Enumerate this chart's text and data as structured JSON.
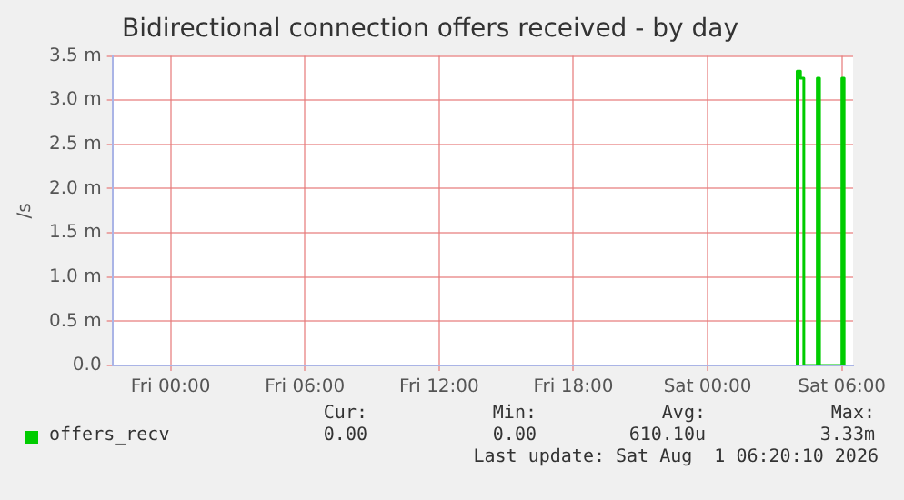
{
  "chart_data": {
    "type": "line",
    "title": "Bidirectional connection offers received - by day",
    "ylabel": "/s",
    "x": [
      "2026-08-01T04:00",
      "2026-08-01T04:00",
      "2026-08-01T04:09",
      "2026-08-01T04:09",
      "2026-08-01T04:18",
      "2026-08-01T04:18",
      "2026-08-01T04:54",
      "2026-08-01T04:54",
      "2026-08-01T05:00",
      "2026-08-01T05:00",
      "2026-08-01T06:00",
      "2026-08-01T06:00",
      "2026-08-01T06:06",
      "2026-08-01T06:06"
    ],
    "series": [
      {
        "name": "offers_recv",
        "color": "#00cc00",
        "values": [
          0,
          3.33,
          3.33,
          3.25,
          3.25,
          0,
          0,
          3.25,
          3.25,
          0,
          0,
          3.25,
          3.25,
          0
        ]
      }
    ],
    "xlim": [
      "2026-07-30T21:24",
      "2026-08-01T06:30"
    ],
    "xticks": [
      {
        "value": "2026-07-31T00:00",
        "label": "Fri 00:00"
      },
      {
        "value": "2026-07-31T06:00",
        "label": "Fri 06:00"
      },
      {
        "value": "2026-07-31T12:00",
        "label": "Fri 12:00"
      },
      {
        "value": "2026-07-31T18:00",
        "label": "Fri 18:00"
      },
      {
        "value": "2026-08-01T00:00",
        "label": "Sat 00:00"
      },
      {
        "value": "2026-08-01T06:00",
        "label": "Sat 06:00"
      }
    ],
    "ylim": [
      0,
      3.5
    ],
    "yticks": [
      {
        "value": 0,
        "label": "0.0"
      },
      {
        "value": 0.5,
        "label": "0.5 m"
      },
      {
        "value": 1,
        "label": "1.0 m"
      },
      {
        "value": 1.5,
        "label": "1.5 m"
      },
      {
        "value": 2,
        "label": "2.0 m"
      },
      {
        "value": 2.5,
        "label": "2.5 m"
      },
      {
        "value": 3,
        "label": "3.0 m"
      },
      {
        "value": 3.5,
        "label": "3.5 m"
      }
    ],
    "grid": true,
    "legend": "bottom",
    "marker": "none",
    "line_style": "solid",
    "annotations": [
      "Cur:",
      "Min:",
      "Avg:",
      "Max:",
      "0.00",
      "0.00",
      "610.10u",
      "3.33m",
      "Last update: Sat Aug  1 06:20:10 2026"
    ]
  }
}
